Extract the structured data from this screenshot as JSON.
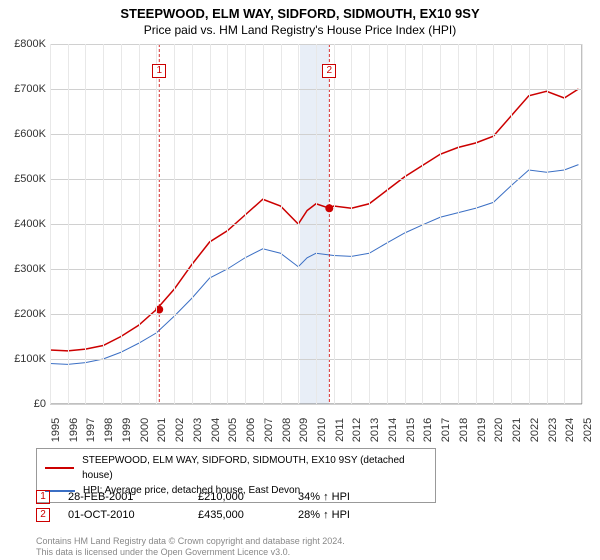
{
  "title": "STEEPWOOD, ELM WAY, SIDFORD, SIDMOUTH, EX10 9SY",
  "subtitle": "Price paid vs. HM Land Registry's House Price Index (HPI)",
  "chart": {
    "type": "line",
    "xlim": [
      1995,
      2025
    ],
    "ylim": [
      0,
      800000
    ],
    "ytick_step": 100000,
    "ytick_format": "£K",
    "x_years": [
      1995,
      1996,
      1997,
      1998,
      1999,
      2000,
      2001,
      2002,
      2003,
      2004,
      2005,
      2006,
      2007,
      2008,
      2009,
      2010,
      2011,
      2012,
      2013,
      2014,
      2015,
      2016,
      2017,
      2018,
      2019,
      2020,
      2021,
      2022,
      2023,
      2024,
      2025
    ],
    "grid_color": "#d0d0d0",
    "background_color": "#ffffff",
    "shade_region": {
      "start": 2009.1,
      "end": 2010.75,
      "color": "#e8eef7"
    },
    "series": [
      {
        "name": "steepwood",
        "label": "STEEPWOOD, ELM WAY, SIDFORD, SIDMOUTH, EX10 9SY (detached house)",
        "color": "#cc0000",
        "width": 1.5,
        "data": [
          [
            1995,
            120000
          ],
          [
            1996,
            118000
          ],
          [
            1997,
            122000
          ],
          [
            1998,
            130000
          ],
          [
            1999,
            150000
          ],
          [
            2000,
            175000
          ],
          [
            2001,
            210000
          ],
          [
            2002,
            255000
          ],
          [
            2003,
            310000
          ],
          [
            2004,
            360000
          ],
          [
            2005,
            385000
          ],
          [
            2006,
            420000
          ],
          [
            2007,
            455000
          ],
          [
            2008,
            440000
          ],
          [
            2009,
            400000
          ],
          [
            2009.5,
            430000
          ],
          [
            2010,
            445000
          ],
          [
            2010.75,
            435000
          ],
          [
            2011,
            440000
          ],
          [
            2012,
            435000
          ],
          [
            2013,
            445000
          ],
          [
            2014,
            475000
          ],
          [
            2015,
            505000
          ],
          [
            2016,
            530000
          ],
          [
            2017,
            555000
          ],
          [
            2018,
            570000
          ],
          [
            2019,
            580000
          ],
          [
            2020,
            595000
          ],
          [
            2021,
            640000
          ],
          [
            2022,
            685000
          ],
          [
            2023,
            695000
          ],
          [
            2024,
            680000
          ],
          [
            2024.8,
            700000
          ]
        ]
      },
      {
        "name": "hpi",
        "label": "HPI: Average price, detached house, East Devon",
        "color": "#3b6fc4",
        "width": 1,
        "data": [
          [
            1995,
            90000
          ],
          [
            1996,
            88000
          ],
          [
            1997,
            92000
          ],
          [
            1998,
            100000
          ],
          [
            1999,
            115000
          ],
          [
            2000,
            135000
          ],
          [
            2001,
            158000
          ],
          [
            2002,
            195000
          ],
          [
            2003,
            235000
          ],
          [
            2004,
            280000
          ],
          [
            2005,
            300000
          ],
          [
            2006,
            325000
          ],
          [
            2007,
            345000
          ],
          [
            2008,
            335000
          ],
          [
            2009,
            305000
          ],
          [
            2009.5,
            325000
          ],
          [
            2010,
            335000
          ],
          [
            2011,
            330000
          ],
          [
            2012,
            328000
          ],
          [
            2013,
            335000
          ],
          [
            2014,
            358000
          ],
          [
            2015,
            380000
          ],
          [
            2016,
            398000
          ],
          [
            2017,
            415000
          ],
          [
            2018,
            425000
          ],
          [
            2019,
            435000
          ],
          [
            2020,
            448000
          ],
          [
            2021,
            485000
          ],
          [
            2022,
            520000
          ],
          [
            2023,
            515000
          ],
          [
            2024,
            520000
          ],
          [
            2024.8,
            532000
          ]
        ]
      }
    ],
    "markers": [
      {
        "num": "1",
        "x": 2001.16,
        "y": 210000,
        "label_y_top": 20
      },
      {
        "num": "2",
        "x": 2010.75,
        "y": 435000,
        "label_y_top": 20
      }
    ]
  },
  "legend": {
    "items": [
      {
        "color": "#cc0000",
        "label": "STEEPWOOD, ELM WAY, SIDFORD, SIDMOUTH, EX10 9SY (detached house)"
      },
      {
        "color": "#3b6fc4",
        "label": "HPI: Average price, detached house, East Devon"
      }
    ]
  },
  "transactions": [
    {
      "num": "1",
      "date": "28-FEB-2001",
      "price": "£210,000",
      "hpi": "34% ↑ HPI"
    },
    {
      "num": "2",
      "date": "01-OCT-2010",
      "price": "£435,000",
      "hpi": "28% ↑ HPI"
    }
  ],
  "footer_line1": "Contains HM Land Registry data © Crown copyright and database right 2024.",
  "footer_line2": "This data is licensed under the Open Government Licence v3.0."
}
